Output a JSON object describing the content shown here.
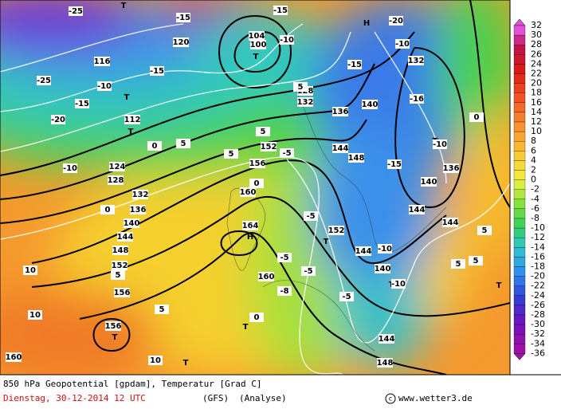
{
  "header": {
    "line1": "850 hPa Geopotential [gpdam], Temperatur [Grad C]",
    "date": "Dienstag, 30-12-2014  12 UTC",
    "model": "(GFS)",
    "run": "(Analyse)",
    "credit": "www.wetter3.de"
  },
  "legend": {
    "labels": [
      "32",
      "30",
      "28",
      "26",
      "24",
      "22",
      "20",
      "18",
      "16",
      "14",
      "12",
      "10",
      "8",
      "6",
      "4",
      "2",
      "0",
      "-2",
      "-4",
      "-6",
      "-8",
      "-10",
      "-12",
      "-14",
      "-16",
      "-18",
      "-20",
      "-22",
      "-24",
      "-26",
      "-28",
      "-30",
      "-32",
      "-34",
      "-36"
    ]
  },
  "map_labels": [
    "T",
    "T",
    "T",
    "T",
    "T",
    "H",
    "H",
    "T",
    "T",
    "T",
    "T",
    "T",
    "T",
    "112",
    "116",
    "120",
    "124",
    "128",
    "132",
    "136",
    "140",
    "144",
    "148",
    "152",
    "156",
    "160",
    "164",
    "156",
    "160",
    "152",
    "156",
    "160",
    "136",
    "140",
    "144",
    "148",
    "152",
    "144",
    "144",
    "144",
    "144",
    "140",
    "132",
    "136",
    "140",
    "148",
    "128",
    "132",
    "104",
    "100",
    "-25",
    "-20",
    "-15",
    "-15",
    "-10",
    "-10",
    "-15",
    "-15",
    "-10",
    "-15",
    "-20",
    "-25",
    "-10",
    "-16",
    "-15",
    "-10",
    "-5",
    "-5",
    "-5",
    "-5",
    "0",
    "0",
    "0",
    "5",
    "5",
    "5",
    "5",
    "-5",
    "-8",
    "-10",
    "-10",
    "5",
    "5",
    "10",
    "10",
    "10",
    "5",
    "5",
    "5",
    "0",
    "0"
  ]
}
